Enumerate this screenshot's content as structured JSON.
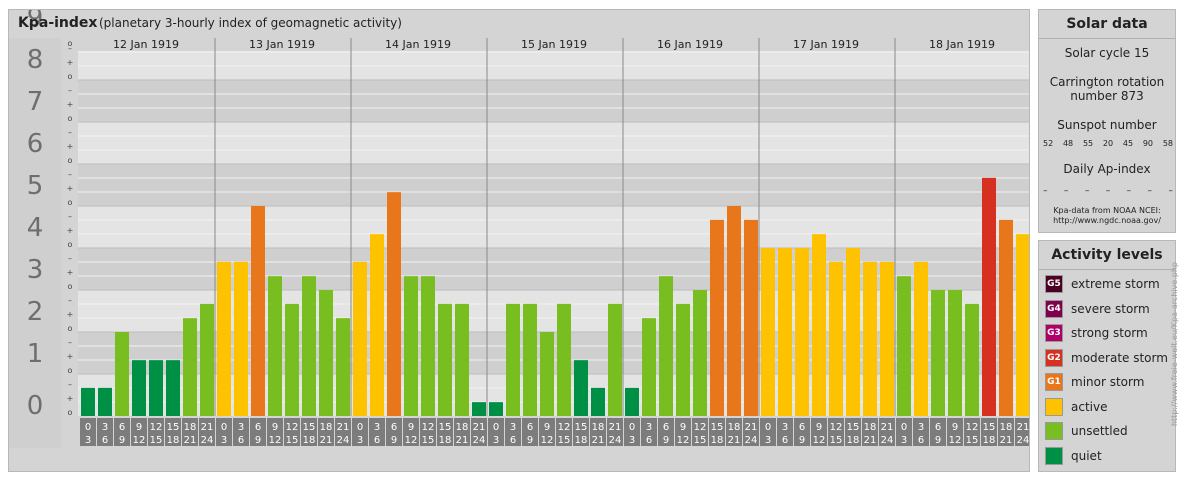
{
  "header": {
    "title": "Kpa-index",
    "subtitle": "(planetary 3-hourly index of geomagnetic activity)"
  },
  "chart_data": {
    "type": "bar",
    "title": "Kpa-index",
    "subtitle": "(planetary 3-hourly index of geomagnetic activity)",
    "ylim": [
      0,
      9
    ],
    "y_ticks": [
      "0",
      "1",
      "2",
      "3",
      "4",
      "5",
      "6",
      "7",
      "8",
      "9"
    ],
    "thirds_labels": [
      "o",
      "+",
      "–"
    ],
    "days": [
      "12 Jan 1919",
      "13 Jan 1919",
      "14 Jan 1919",
      "15 Jan 1919",
      "16 Jan 1919",
      "17 Jan 1919",
      "18 Jan 1919"
    ],
    "interval_labels": [
      [
        "0",
        "3"
      ],
      [
        "3",
        "6"
      ],
      [
        "6",
        "9"
      ],
      [
        "9",
        "12"
      ],
      [
        "12",
        "15"
      ],
      [
        "15",
        "18"
      ],
      [
        "18",
        "21"
      ],
      [
        "21",
        "24"
      ]
    ],
    "series": [
      {
        "values": [
          0.67,
          0.67,
          2.0,
          1.33,
          1.33,
          1.33,
          2.33,
          2.67,
          3.67,
          3.67,
          5.0,
          3.33,
          2.67,
          3.33,
          3.0,
          2.33,
          3.67,
          4.33,
          5.33,
          3.33,
          3.33,
          2.67,
          2.67,
          0.33,
          0.33,
          2.67,
          2.67,
          2.0,
          2.67,
          1.33,
          0.67,
          2.67,
          0.67,
          2.33,
          3.33,
          2.67,
          3.0,
          4.67,
          5.0,
          4.67,
          4.0,
          4.0,
          4.0,
          4.33,
          3.67,
          4.0,
          3.67,
          3.67,
          3.33,
          3.67,
          3.0,
          3.0,
          2.67,
          5.67,
          4.67,
          4.33
        ]
      }
    ],
    "grid": true,
    "legend": "right panel"
  },
  "solar": {
    "title": "Solar data",
    "cycle": "Solar cycle 15",
    "carrington_line1": "Carrington rotation",
    "carrington_line2": "number 873",
    "sunspot_title": "Sunspot number",
    "sunspot_values": [
      "52",
      "48",
      "55",
      "20",
      "45",
      "90",
      "58"
    ],
    "ap_title": "Daily Ap-index",
    "ap_values": [
      "–",
      "–",
      "–",
      "–",
      "–",
      "–",
      "–"
    ],
    "source_line1": "Kpa-data from NOAA NCEI:",
    "source_line2": "http://www.ngdc.noaa.gov/"
  },
  "levels": {
    "title": "Activity levels",
    "items": [
      {
        "badge": "G5",
        "label": "extreme storm",
        "color": "#4d0026"
      },
      {
        "badge": "G4",
        "label": "severe storm",
        "color": "#80004d"
      },
      {
        "badge": "G3",
        "label": "strong storm",
        "color": "#b00068"
      },
      {
        "badge": "G2",
        "label": "moderate storm",
        "color": "#d53020"
      },
      {
        "badge": "G1",
        "label": "minor storm",
        "color": "#e8761a"
      },
      {
        "badge": "",
        "label": "active",
        "color": "#ffc200"
      },
      {
        "badge": "",
        "label": "unsettled",
        "color": "#78be20"
      },
      {
        "badge": "",
        "label": "quiet",
        "color": "#009045"
      }
    ]
  },
  "credit": "http://www.freie-welt.eu/Kpa-archive.php"
}
